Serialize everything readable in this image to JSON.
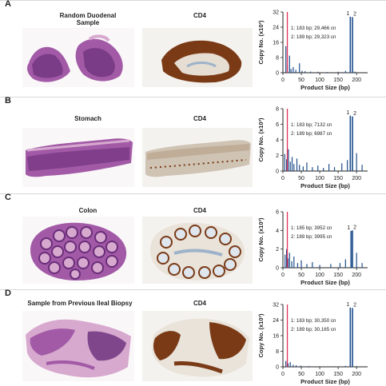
{
  "panels": [
    {
      "letter": "A",
      "he_title": "Random Duodenal\nSample",
      "cd4_title": "CD4",
      "chart_data": {
        "type": "bar",
        "xlabel": "Product Size (bp)",
        "ylabel": "Copy No. (x10³)",
        "xlim": [
          0,
          230
        ],
        "ylim": [
          0,
          32
        ],
        "xticks": [
          0,
          50,
          100,
          150,
          200
        ],
        "yticks": [
          0,
          8,
          16,
          24,
          32
        ],
        "annotations": [
          "1: 183 bp; 29,466 cn",
          "2: 189 bp; 29,323 cn"
        ],
        "peak_labels": [
          "1",
          "2"
        ],
        "peaks": [
          {
            "x": 183,
            "y": 29.5
          },
          {
            "x": 189,
            "y": 29.3
          }
        ],
        "noise": [
          {
            "x": 8,
            "y": 14
          },
          {
            "x": 12,
            "y": 4
          },
          {
            "x": 18,
            "y": 9
          },
          {
            "x": 22,
            "y": 2
          },
          {
            "x": 28,
            "y": 3
          },
          {
            "x": 35,
            "y": 1.5
          },
          {
            "x": 45,
            "y": 5
          },
          {
            "x": 52,
            "y": 1
          },
          {
            "x": 60,
            "y": 0.8
          },
          {
            "x": 75,
            "y": 0.6
          },
          {
            "x": 95,
            "y": 0.5
          },
          {
            "x": 120,
            "y": 0.4
          },
          {
            "x": 150,
            "y": 0.5
          },
          {
            "x": 170,
            "y": 1
          },
          {
            "x": 195,
            "y": 0.6
          }
        ],
        "marker_x": 12
      }
    },
    {
      "letter": "B",
      "he_title": "Stomach",
      "cd4_title": "CD4",
      "chart_data": {
        "type": "bar",
        "xlabel": "Product Size (bp)",
        "ylabel": "Copy No. (x10³)",
        "xlim": [
          0,
          230
        ],
        "ylim": [
          0,
          8
        ],
        "xticks": [
          0,
          50,
          100,
          150,
          200
        ],
        "yticks": [
          0,
          2,
          4,
          6,
          8
        ],
        "annotations": [
          "1: 183 bp; 7132 cn",
          "2: 189 bp; 6987 cn"
        ],
        "peak_labels": [
          "1",
          "2"
        ],
        "peaks": [
          {
            "x": 183,
            "y": 7.1
          },
          {
            "x": 189,
            "y": 7.0
          }
        ],
        "noise": [
          {
            "x": 5,
            "y": 2.2
          },
          {
            "x": 10,
            "y": 1.5
          },
          {
            "x": 15,
            "y": 2.8
          },
          {
            "x": 20,
            "y": 1.2
          },
          {
            "x": 25,
            "y": 1.8
          },
          {
            "x": 30,
            "y": 0.9
          },
          {
            "x": 38,
            "y": 1.6
          },
          {
            "x": 45,
            "y": 0.8
          },
          {
            "x": 55,
            "y": 0.6
          },
          {
            "x": 65,
            "y": 1.1
          },
          {
            "x": 80,
            "y": 0.5
          },
          {
            "x": 95,
            "y": 0.7
          },
          {
            "x": 110,
            "y": 0.4
          },
          {
            "x": 125,
            "y": 0.9
          },
          {
            "x": 140,
            "y": 0.5
          },
          {
            "x": 160,
            "y": 1.0
          },
          {
            "x": 175,
            "y": 1.4
          },
          {
            "x": 200,
            "y": 2.3
          },
          {
            "x": 215,
            "y": 0.8
          }
        ],
        "marker_x": 12
      }
    },
    {
      "letter": "C",
      "he_title": "Colon",
      "cd4_title": "CD4",
      "chart_data": {
        "type": "bar",
        "xlabel": "Product Size (bp)",
        "ylabel": "Copy No. (x10³)",
        "xlim": [
          0,
          230
        ],
        "ylim": [
          0,
          6
        ],
        "xticks": [
          0,
          50,
          100,
          150,
          200
        ],
        "yticks": [
          0,
          2,
          4,
          6
        ],
        "annotations": [
          "1: 185 bp; 3952 cn",
          "2: 189 bp; 3995 cn"
        ],
        "peak_labels": [
          "1",
          "2"
        ],
        "peaks": [
          {
            "x": 185,
            "y": 3.95
          },
          {
            "x": 189,
            "y": 4.0
          }
        ],
        "noise": [
          {
            "x": 6,
            "y": 1.4
          },
          {
            "x": 10,
            "y": 2.0
          },
          {
            "x": 14,
            "y": 1.0
          },
          {
            "x": 18,
            "y": 1.6
          },
          {
            "x": 24,
            "y": 0.7
          },
          {
            "x": 30,
            "y": 1.2
          },
          {
            "x": 40,
            "y": 0.5
          },
          {
            "x": 50,
            "y": 0.8
          },
          {
            "x": 65,
            "y": 0.4
          },
          {
            "x": 80,
            "y": 0.6
          },
          {
            "x": 100,
            "y": 0.3
          },
          {
            "x": 130,
            "y": 0.4
          },
          {
            "x": 155,
            "y": 0.5
          },
          {
            "x": 170,
            "y": 0.9
          },
          {
            "x": 200,
            "y": 1.6
          },
          {
            "x": 215,
            "y": 0.5
          }
        ],
        "marker_x": 12
      }
    },
    {
      "letter": "D",
      "he_title": "Sample from Previous Ileal Biopsy",
      "cd4_title": "CD4",
      "chart_data": {
        "type": "bar",
        "xlabel": "Product Size (bp)",
        "ylabel": "Copy No. (x10³)",
        "xlim": [
          0,
          230
        ],
        "ylim": [
          0,
          32
        ],
        "xticks": [
          0,
          50,
          100,
          150,
          200
        ],
        "yticks": [
          0,
          8,
          16,
          24,
          32
        ],
        "annotations": [
          "1: 183 bp; 30,350 cn",
          "2: 189 bp; 30,165 cn"
        ],
        "peak_labels": [
          "1",
          "2"
        ],
        "peaks": [
          {
            "x": 183,
            "y": 30.4
          },
          {
            "x": 189,
            "y": 30.2
          }
        ],
        "noise": [
          {
            "x": 8,
            "y": 3.0
          },
          {
            "x": 14,
            "y": 1.8
          },
          {
            "x": 20,
            "y": 2.4
          },
          {
            "x": 28,
            "y": 1.0
          },
          {
            "x": 36,
            "y": 0.8
          },
          {
            "x": 48,
            "y": 0.6
          },
          {
            "x": 70,
            "y": 0.4
          },
          {
            "x": 100,
            "y": 0.3
          },
          {
            "x": 140,
            "y": 0.3
          },
          {
            "x": 170,
            "y": 0.5
          },
          {
            "x": 200,
            "y": 0.4
          }
        ],
        "marker_x": 12
      }
    }
  ],
  "colors": {
    "bars": "#1f4e8c",
    "marker": "#e2335a",
    "he_dark": "#6a2d7a",
    "he_mid": "#a25aa6",
    "he_light": "#d7a9cf",
    "cd4_brown": "#7a3a16",
    "cd4_blue": "#9eb3c9"
  }
}
